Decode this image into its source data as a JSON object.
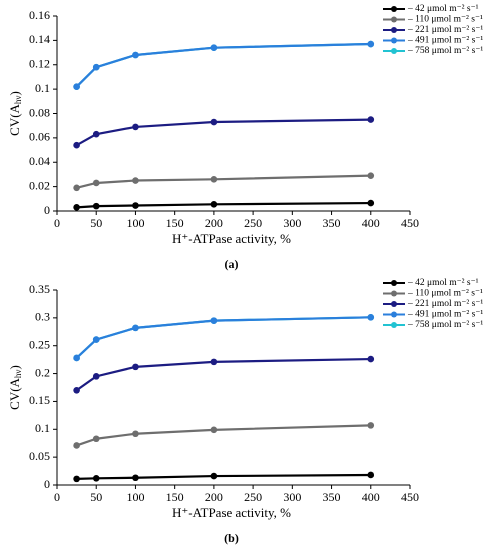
{
  "chart_data": [
    {
      "type": "line",
      "panel": "(a)",
      "ylabel": {
        "main": "CV(A",
        "sub": "hν",
        "close": ")"
      },
      "xlabel": "H⁺-ATPase activity, %",
      "x": [
        25,
        50,
        100,
        200,
        400
      ],
      "xlim": [
        0,
        450
      ],
      "xticks": [
        0,
        50,
        100,
        150,
        200,
        250,
        300,
        350,
        400,
        450
      ],
      "ylim": [
        0,
        0.16
      ],
      "yticks": [
        0,
        0.02,
        0.04,
        0.06,
        0.08,
        0.1,
        0.12,
        0.14,
        0.16
      ],
      "legend": "top-right",
      "series": [
        {
          "name": "– 42 μmol m⁻² s⁻¹",
          "color": "#000000",
          "values": [
            0.003,
            0.004,
            0.0045,
            0.0055,
            0.0065
          ]
        },
        {
          "name": "– 110 μmol m⁻² s⁻¹",
          "color": "#6e6e6e",
          "values": [
            0.019,
            0.023,
            0.025,
            0.026,
            0.029
          ]
        },
        {
          "name": "– 221 μmol m⁻² s⁻¹",
          "color": "#1c1c82",
          "values": [
            0.054,
            0.063,
            0.069,
            0.073,
            0.075
          ]
        },
        {
          "name": "– 491 μmol m⁻² s⁻¹",
          "color": "#2b7fdc",
          "values": [
            0.102,
            0.118,
            0.128,
            0.134,
            0.137
          ]
        },
        {
          "name": "– 758 μmol m⁻² s⁻¹",
          "color": "#22c3d2",
          "values": [
            0.102,
            0.118,
            0.128,
            0.134,
            0.137
          ]
        }
      ]
    },
    {
      "type": "line",
      "panel": "(b)",
      "ylabel": {
        "main": "CV(A",
        "sub": "hν",
        "close": ")"
      },
      "xlabel": "H⁺-ATPase activity, %",
      "x": [
        25,
        50,
        100,
        200,
        400
      ],
      "xlim": [
        0,
        450
      ],
      "xticks": [
        0,
        50,
        100,
        150,
        200,
        250,
        300,
        350,
        400,
        450
      ],
      "ylim": [
        0,
        0.35
      ],
      "yticks": [
        0,
        0.05,
        0.1,
        0.15,
        0.2,
        0.25,
        0.3,
        0.35
      ],
      "legend": "top-right",
      "series": [
        {
          "name": "– 42 μmol m⁻² s⁻¹",
          "color": "#000000",
          "values": [
            0.011,
            0.012,
            0.013,
            0.016,
            0.018
          ]
        },
        {
          "name": "– 110 μmol m⁻² s⁻¹",
          "color": "#6e6e6e",
          "values": [
            0.071,
            0.083,
            0.092,
            0.099,
            0.107
          ]
        },
        {
          "name": "– 221 μmol m⁻² s⁻¹",
          "color": "#1c1c82",
          "values": [
            0.17,
            0.195,
            0.212,
            0.221,
            0.226
          ]
        },
        {
          "name": "– 491 μmol m⁻² s⁻¹",
          "color": "#2b7fdc",
          "values": [
            0.228,
            0.261,
            0.282,
            0.295,
            0.301
          ]
        },
        {
          "name": "– 758 μmol m⁻² s⁻¹",
          "color": "#22c3d2",
          "values": [
            0.228,
            0.261,
            0.282,
            0.295,
            0.301
          ]
        }
      ]
    }
  ]
}
